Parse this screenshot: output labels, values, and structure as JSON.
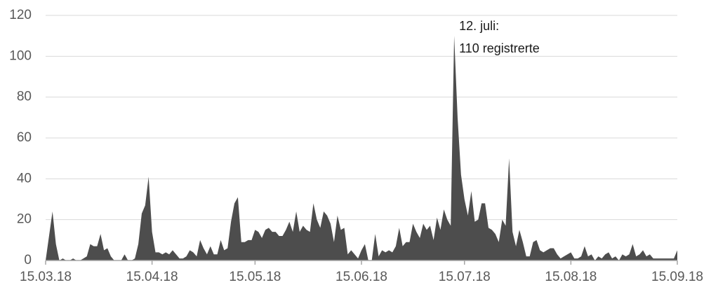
{
  "chart_data": {
    "type": "area",
    "color": "#4d4d4d",
    "grid": true,
    "ylim": [
      0,
      120
    ],
    "yticks": [
      0,
      20,
      40,
      60,
      80,
      100,
      120
    ],
    "annotation": [
      "12. juli:",
      "110 registrerte"
    ],
    "categories": [
      "15.03.18",
      null,
      null,
      null,
      null,
      null,
      null,
      null,
      null,
      null,
      null,
      null,
      null,
      null,
      null,
      null,
      null,
      null,
      null,
      null,
      null,
      null,
      null,
      null,
      null,
      null,
      null,
      null,
      null,
      null,
      null,
      "15.04.18",
      null,
      null,
      null,
      null,
      null,
      null,
      null,
      null,
      null,
      null,
      null,
      null,
      null,
      null,
      null,
      null,
      null,
      null,
      null,
      null,
      null,
      null,
      null,
      null,
      null,
      null,
      null,
      null,
      null,
      "15.05.18",
      null,
      null,
      null,
      null,
      null,
      null,
      null,
      null,
      null,
      null,
      null,
      null,
      null,
      null,
      null,
      null,
      null,
      null,
      null,
      null,
      null,
      null,
      null,
      null,
      null,
      null,
      null,
      null,
      null,
      null,
      "15.06.18",
      null,
      null,
      null,
      null,
      null,
      null,
      null,
      null,
      null,
      null,
      null,
      null,
      null,
      null,
      null,
      null,
      null,
      null,
      null,
      null,
      null,
      null,
      null,
      null,
      null,
      null,
      null,
      null,
      null,
      "15.07.18",
      null,
      null,
      null,
      null,
      null,
      null,
      null,
      null,
      null,
      null,
      null,
      null,
      null,
      null,
      null,
      null,
      null,
      null,
      null,
      null,
      null,
      null,
      null,
      null,
      null,
      null,
      null,
      null,
      null,
      null,
      "15.08.18",
      null,
      null,
      null,
      null,
      null,
      null,
      null,
      null,
      null,
      null,
      null,
      null,
      null,
      null,
      null,
      null,
      null,
      null,
      null,
      null,
      null,
      null,
      null,
      null,
      null,
      null,
      null,
      null,
      null,
      null,
      "15.09.18"
    ],
    "values": [
      0,
      12,
      24,
      8,
      0,
      1,
      0,
      0,
      1,
      0,
      0,
      1,
      2,
      8,
      7,
      7,
      13,
      5,
      6,
      2,
      0,
      0,
      0,
      3,
      0,
      0,
      1,
      8,
      23,
      27,
      41,
      14,
      4,
      4,
      3,
      4,
      3,
      5,
      3,
      1,
      1,
      2,
      5,
      4,
      2,
      10,
      6,
      3,
      7,
      3,
      3,
      10,
      5,
      6,
      19,
      28,
      31,
      9,
      9,
      10,
      10,
      15,
      14,
      11,
      15,
      16,
      14,
      14,
      12,
      12,
      15,
      19,
      14,
      24,
      14,
      17,
      15,
      14,
      28,
      20,
      16,
      24,
      22,
      18,
      9,
      22,
      15,
      16,
      3,
      5,
      3,
      1,
      5,
      8,
      0,
      0,
      13,
      2,
      5,
      4,
      5,
      4,
      7,
      16,
      7,
      9,
      9,
      18,
      14,
      11,
      18,
      15,
      17,
      10,
      21,
      15,
      25,
      20,
      17,
      110,
      70,
      42,
      30,
      22,
      34,
      19,
      20,
      28,
      28,
      16,
      15,
      13,
      9,
      20,
      17,
      50,
      14,
      7,
      15,
      9,
      2,
      2,
      9,
      10,
      5,
      4,
      5,
      6,
      6,
      3,
      1,
      2,
      3,
      4,
      1,
      1,
      2,
      7,
      2,
      3,
      0,
      2,
      1,
      3,
      4,
      1,
      2,
      0,
      3,
      2,
      3,
      8,
      2,
      3,
      5,
      2,
      3,
      1,
      1,
      1,
      1,
      1,
      1,
      1,
      5
    ]
  }
}
